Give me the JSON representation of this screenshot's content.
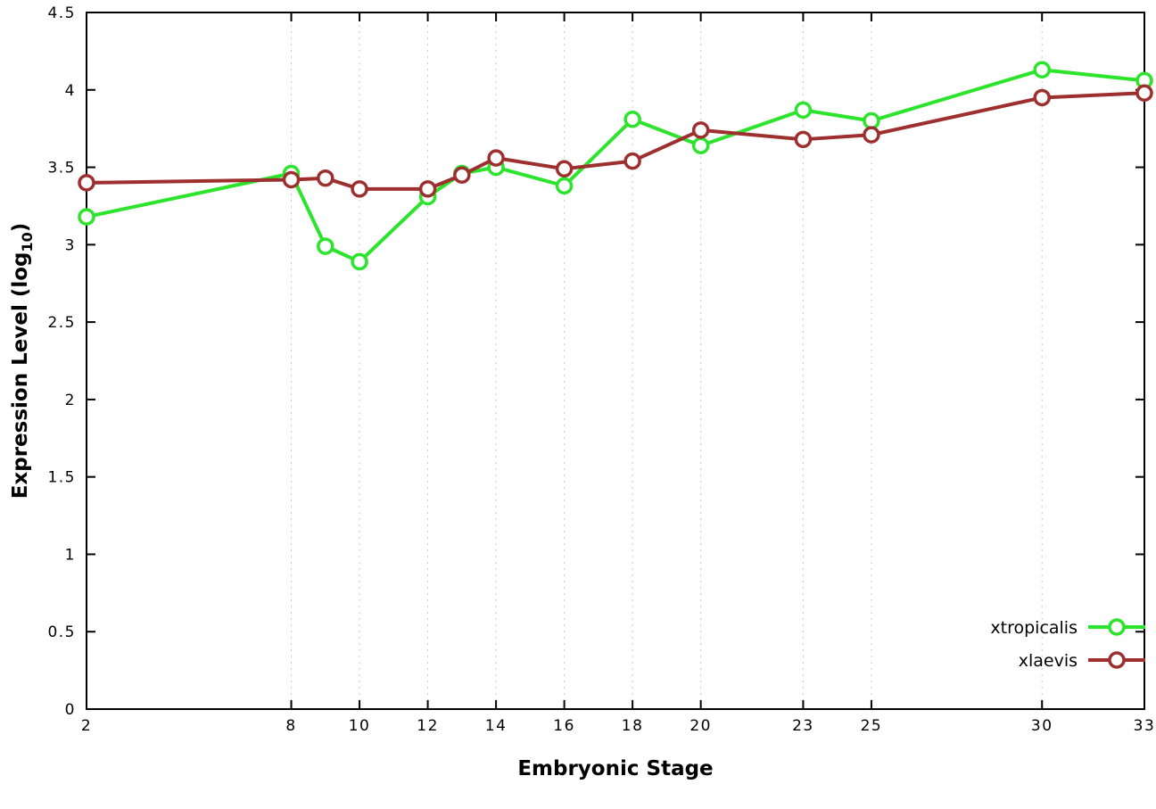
{
  "chart_data": {
    "type": "line",
    "title": "",
    "xlabel": "Embryonic Stage",
    "ylabel": "Expression Level (log10)",
    "ylabel_parts": {
      "pre": "Expression Level (log",
      "sub": "10",
      "post": ")"
    },
    "xlim": [
      2,
      33
    ],
    "ylim": [
      0,
      4.5
    ],
    "x": [
      2,
      8,
      9,
      10,
      12,
      13,
      14,
      16,
      18,
      20,
      23,
      25,
      30,
      33
    ],
    "xtick_labels": [
      2,
      8,
      10,
      12,
      14,
      16,
      18,
      20,
      23,
      25,
      30,
      33
    ],
    "yticks": [
      0,
      0.5,
      1,
      1.5,
      2,
      2.5,
      3,
      3.5,
      4,
      4.5
    ],
    "grid": "vertical-dotted",
    "legend_position": "bottom-right-inside",
    "colors": {
      "grid": "#c9c9c9",
      "axis": "#000000",
      "background": "#ffffff"
    },
    "series": [
      {
        "name": "xtropicalis",
        "color": "#2ce42c",
        "marker": "open-circle",
        "values": [
          3.18,
          3.46,
          2.99,
          2.89,
          3.31,
          3.46,
          3.5,
          3.38,
          3.81,
          3.64,
          3.87,
          3.8,
          4.13,
          4.06
        ]
      },
      {
        "name": "xlaevis",
        "color": "#9e2f2f",
        "marker": "open-circle",
        "values": [
          3.4,
          3.42,
          3.43,
          3.36,
          3.36,
          3.45,
          3.56,
          3.49,
          3.54,
          3.74,
          3.68,
          3.71,
          3.95,
          3.98
        ]
      }
    ]
  }
}
